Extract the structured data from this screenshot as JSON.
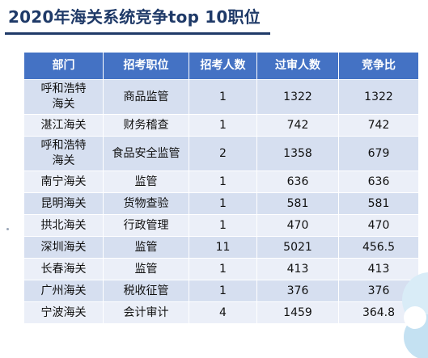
{
  "title": "2020年海关系统竞争top 10职位",
  "table": {
    "headers": [
      "部门",
      "招考职位",
      "招考人数",
      "过审人数",
      "竞争比"
    ],
    "rows": [
      [
        "呼和浩特\n海关",
        "商品监管",
        "1",
        "1322",
        "1322"
      ],
      [
        "湛江海关",
        "财务稽查",
        "1",
        "742",
        "742"
      ],
      [
        "呼和浩特\n海关",
        "食品安全监管",
        "2",
        "1358",
        "679"
      ],
      [
        "南宁海关",
        "监管",
        "1",
        "636",
        "636"
      ],
      [
        "昆明海关",
        "货物查验",
        "1",
        "581",
        "581"
      ],
      [
        "拱北海关",
        "行政管理",
        "1",
        "470",
        "470"
      ],
      [
        "深圳海关",
        "监管",
        "11",
        "5021",
        "456.5"
      ],
      [
        "长春海关",
        "监管",
        "1",
        "413",
        "413"
      ],
      [
        "广州海关",
        "税收征管",
        "1",
        "376",
        "376"
      ],
      [
        "宁波海关",
        "会计审计",
        "4",
        "1459",
        "364.8"
      ]
    ]
  },
  "colors": {
    "title": "#1f3a68",
    "header_bg": "#4472c4",
    "row_odd": "#d6dff0",
    "row_even": "#ebeff8"
  }
}
